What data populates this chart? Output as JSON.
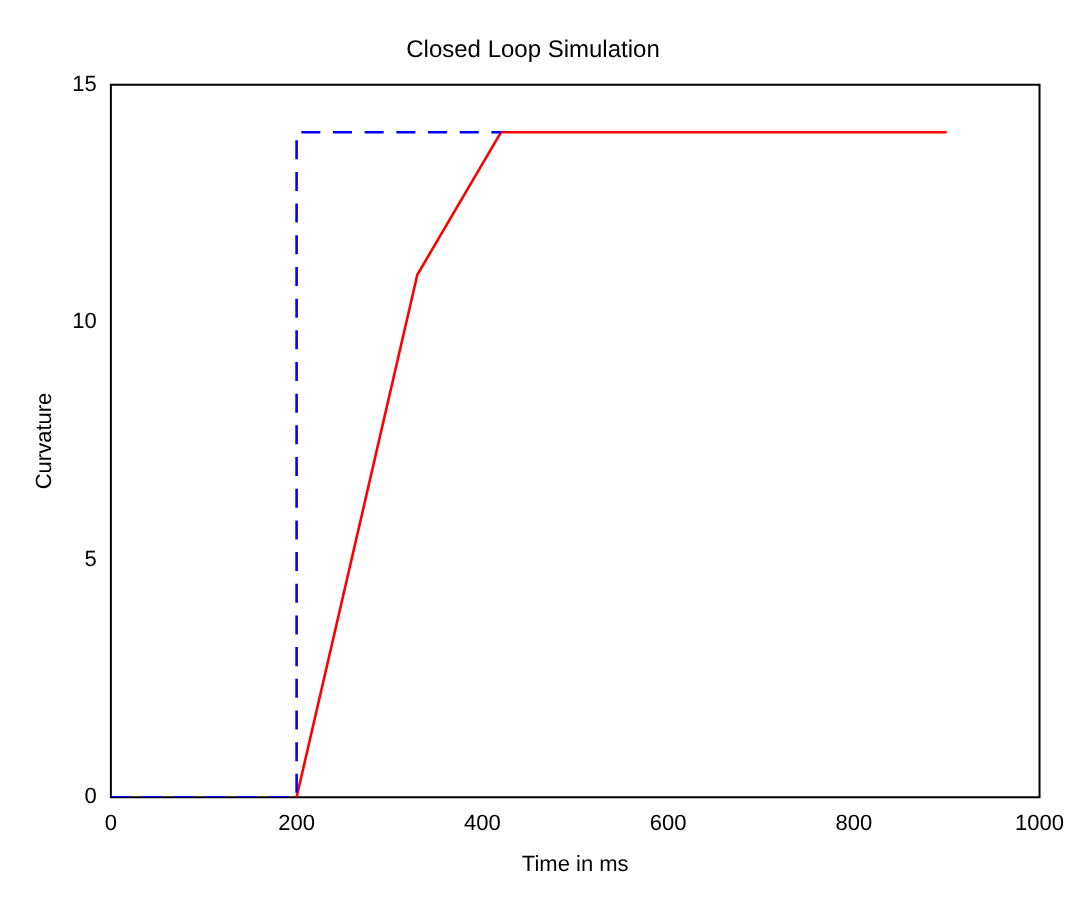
{
  "chart_data": {
    "type": "line",
    "title": "Closed Loop Simulation",
    "xlabel": "Time in ms",
    "ylabel": "Curvature",
    "series": [
      {
        "color": "#0000ff",
        "line_style": "dashed",
        "x": [
          0,
          200,
          200,
          420
        ],
        "values": [
          0,
          0,
          14,
          14
        ]
      },
      {
        "color": "#ff0000",
        "line_style": "solid",
        "x": [
          200,
          330,
          420,
          900
        ],
        "values": [
          0,
          11,
          14,
          14
        ]
      }
    ],
    "xlim": [
      0,
      1000
    ],
    "xticks": [
      0,
      200,
      400,
      600,
      800,
      1000
    ],
    "ylim": [
      0,
      15
    ],
    "yticks": [
      0,
      5,
      10,
      15
    ],
    "grid": false,
    "legend": false,
    "marker": "none"
  }
}
